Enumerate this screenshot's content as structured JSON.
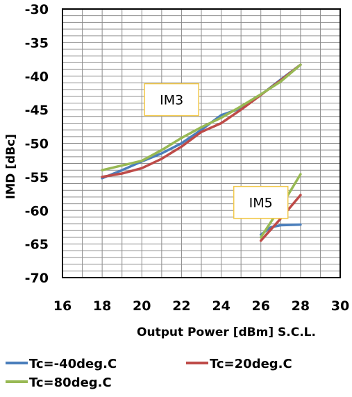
{
  "chart_data": {
    "type": "line",
    "title": "",
    "xlabel": "Output Power [dBm] S.C.L.",
    "ylabel": "IMD [dBc]",
    "xlim": [
      16,
      30
    ],
    "ylim": [
      -70,
      -30
    ],
    "x_ticks": [
      16,
      18,
      20,
      22,
      24,
      26,
      28,
      30
    ],
    "y_ticks": [
      -30,
      -35,
      -40,
      -45,
      -50,
      -55,
      -60,
      -65,
      -70
    ],
    "x_tick_labels": [
      "16",
      "18",
      "20",
      "22",
      "24",
      "26",
      "28",
      "30"
    ],
    "y_tick_labels": [
      "-30",
      "-35",
      "-40",
      "-45",
      "-50",
      "-55",
      "-60",
      "-65",
      "-70"
    ],
    "minor_grid_step": 1,
    "grid": true,
    "legend_position": "bottom",
    "annotations": [
      {
        "text": "IM3",
        "x": 21.5,
        "y": -43.5
      },
      {
        "text": "IM5",
        "x": 26.0,
        "y": -58.8
      }
    ],
    "series": [
      {
        "name": "Tc=-40deg.C",
        "color": "#4a7ebb",
        "groups": [
          {
            "label": "IM3",
            "points": [
              [
                18,
                -55.2
              ],
              [
                19,
                -54.0
              ],
              [
                20,
                -52.7
              ],
              [
                21,
                -51.5
              ],
              [
                22,
                -50.0
              ],
              [
                23,
                -48.0
              ],
              [
                24,
                -45.8
              ],
              [
                25,
                -44.8
              ],
              [
                26,
                -42.8
              ],
              [
                27,
                -40.5
              ],
              [
                28,
                -38.3
              ]
            ]
          },
          {
            "label": "IM5",
            "points": [
              [
                26,
                -63.6
              ],
              [
                26.5,
                -62.5
              ],
              [
                27,
                -62.2
              ],
              [
                28,
                -62.1
              ]
            ]
          }
        ]
      },
      {
        "name": "Tc=20deg.C",
        "color": "#be4b48",
        "groups": [
          {
            "label": "IM3",
            "points": [
              [
                18,
                -55.0
              ],
              [
                19,
                -54.5
              ],
              [
                20,
                -53.7
              ],
              [
                21,
                -52.3
              ],
              [
                22,
                -50.5
              ],
              [
                23,
                -48.3
              ],
              [
                24,
                -47.0
              ],
              [
                25,
                -45.0
              ],
              [
                26,
                -42.8
              ],
              [
                27,
                -40.6
              ],
              [
                28,
                -38.3
              ]
            ]
          },
          {
            "label": "IM5",
            "points": [
              [
                26,
                -64.5
              ],
              [
                27,
                -61.2
              ],
              [
                28,
                -57.7
              ]
            ]
          }
        ]
      },
      {
        "name": "Tc=80deg.C",
        "color": "#98b954",
        "groups": [
          {
            "label": "IM3",
            "points": [
              [
                18,
                -54.0
              ],
              [
                19,
                -53.3
              ],
              [
                20,
                -52.6
              ],
              [
                21,
                -51.0
              ],
              [
                22,
                -49.2
              ],
              [
                23,
                -47.6
              ],
              [
                24,
                -46.2
              ],
              [
                25,
                -44.5
              ],
              [
                26,
                -42.7
              ],
              [
                27,
                -40.8
              ],
              [
                28,
                -38.3
              ]
            ]
          },
          {
            "label": "IM5",
            "points": [
              [
                26,
                -64.0
              ],
              [
                27,
                -59.5
              ],
              [
                28,
                -54.6
              ]
            ]
          }
        ]
      }
    ]
  }
}
